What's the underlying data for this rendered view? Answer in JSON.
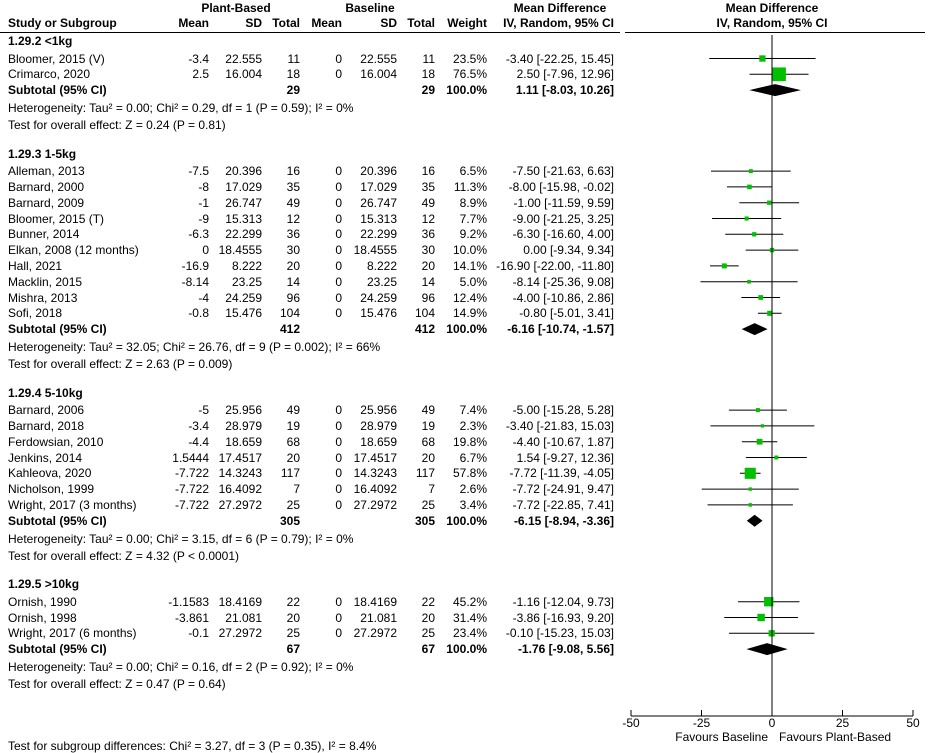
{
  "header": {
    "plant_group": "Plant-Based",
    "baseline_group": "Baseline",
    "md_group": "Mean Difference",
    "study_col": "Study or Subgroup",
    "mean": "Mean",
    "sd": "SD",
    "total": "Total",
    "weight": "Weight",
    "method": "IV, Random, 95% CI",
    "plot_title": "Mean Difference",
    "plot_method": "IV, Random, 95% CI"
  },
  "chart_data": {
    "type": "forest",
    "xlim": [
      -50,
      50
    ],
    "x_ticks": [
      "-50",
      "-25",
      "0",
      "25",
      "50"
    ],
    "x_tick_values": [
      -50,
      -25,
      0,
      25,
      50
    ],
    "favours_left": "Favours Baseline",
    "favours_right": "Favours Plant-Based",
    "marker_color": "#00c000",
    "groups": [
      {
        "title": "1.29.2 <1kg",
        "studies": [
          {
            "name": "Bloomer, 2015 (V)",
            "pb_mean": "-3.4",
            "pb_sd": "22.555",
            "pb_total": "11",
            "bl_mean": "0",
            "bl_sd": "22.555",
            "bl_total": "11",
            "weight": "23.5%",
            "ci": "-3.40 [-22.25, 15.45]",
            "md": -3.4,
            "lo": -22.25,
            "hi": 15.45
          },
          {
            "name": "Crimarco, 2020",
            "pb_mean": "2.5",
            "pb_sd": "16.004",
            "pb_total": "18",
            "bl_mean": "0",
            "bl_sd": "16.004",
            "bl_total": "18",
            "weight": "76.5%",
            "ci": "2.50 [-7.96, 12.96]",
            "md": 2.5,
            "lo": -7.96,
            "hi": 12.96
          }
        ],
        "subtotal": {
          "label": "Subtotal (95% CI)",
          "pb_total": "29",
          "bl_total": "29",
          "weight": "100.0%",
          "ci": "1.11 [-8.03, 10.26]",
          "md": 1.11,
          "lo": -8.03,
          "hi": 10.26
        },
        "heterogeneity": "Heterogeneity: Tau² = 0.00; Chi² = 0.29, df = 1 (P = 0.59); I² = 0%",
        "overall": "Test for overall effect: Z = 0.24 (P = 0.81)"
      },
      {
        "title": "1.29.3 1-5kg",
        "studies": [
          {
            "name": "Alleman, 2013",
            "pb_mean": "-7.5",
            "pb_sd": "20.396",
            "pb_total": "16",
            "bl_mean": "0",
            "bl_sd": "20.396",
            "bl_total": "16",
            "weight": "6.5%",
            "ci": "-7.50 [-21.63, 6.63]",
            "md": -7.5,
            "lo": -21.63,
            "hi": 6.63
          },
          {
            "name": "Barnard, 2000",
            "pb_mean": "-8",
            "pb_sd": "17.029",
            "pb_total": "35",
            "bl_mean": "0",
            "bl_sd": "17.029",
            "bl_total": "35",
            "weight": "11.3%",
            "ci": "-8.00 [-15.98, -0.02]",
            "md": -8.0,
            "lo": -15.98,
            "hi": -0.02
          },
          {
            "name": "Barnard, 2009",
            "pb_mean": "-1",
            "pb_sd": "26.747",
            "pb_total": "49",
            "bl_mean": "0",
            "bl_sd": "26.747",
            "bl_total": "49",
            "weight": "8.9%",
            "ci": "-1.00 [-11.59, 9.59]",
            "md": -1.0,
            "lo": -11.59,
            "hi": 9.59
          },
          {
            "name": "Bloomer, 2015 (T)",
            "pb_mean": "-9",
            "pb_sd": "15.313",
            "pb_total": "12",
            "bl_mean": "0",
            "bl_sd": "15.313",
            "bl_total": "12",
            "weight": "7.7%",
            "ci": "-9.00 [-21.25, 3.25]",
            "md": -9.0,
            "lo": -21.25,
            "hi": 3.25
          },
          {
            "name": "Bunner, 2014",
            "pb_mean": "-6.3",
            "pb_sd": "22.299",
            "pb_total": "36",
            "bl_mean": "0",
            "bl_sd": "22.299",
            "bl_total": "36",
            "weight": "9.2%",
            "ci": "-6.30 [-16.60, 4.00]",
            "md": -6.3,
            "lo": -16.6,
            "hi": 4.0
          },
          {
            "name": "Elkan, 2008 (12 months)",
            "pb_mean": "0",
            "pb_sd": "18.4555",
            "pb_total": "30",
            "bl_mean": "0",
            "bl_sd": "18.4555",
            "bl_total": "30",
            "weight": "10.0%",
            "ci": "0.00 [-9.34, 9.34]",
            "md": 0.0,
            "lo": -9.34,
            "hi": 9.34
          },
          {
            "name": "Hall, 2021",
            "pb_mean": "-16.9",
            "pb_sd": "8.222",
            "pb_total": "20",
            "bl_mean": "0",
            "bl_sd": "8.222",
            "bl_total": "20",
            "weight": "14.1%",
            "ci": "-16.90 [-22.00, -11.80]",
            "md": -16.9,
            "lo": -22.0,
            "hi": -11.8
          },
          {
            "name": "Macklin, 2015",
            "pb_mean": "-8.14",
            "pb_sd": "23.25",
            "pb_total": "14",
            "bl_mean": "0",
            "bl_sd": "23.25",
            "bl_total": "14",
            "weight": "5.0%",
            "ci": "-8.14 [-25.36, 9.08]",
            "md": -8.14,
            "lo": -25.36,
            "hi": 9.08
          },
          {
            "name": "Mishra, 2013",
            "pb_mean": "-4",
            "pb_sd": "24.259",
            "pb_total": "96",
            "bl_mean": "0",
            "bl_sd": "24.259",
            "bl_total": "96",
            "weight": "12.4%",
            "ci": "-4.00 [-10.86, 2.86]",
            "md": -4.0,
            "lo": -10.86,
            "hi": 2.86
          },
          {
            "name": "Sofi, 2018",
            "pb_mean": "-0.8",
            "pb_sd": "15.476",
            "pb_total": "104",
            "bl_mean": "0",
            "bl_sd": "15.476",
            "bl_total": "104",
            "weight": "14.9%",
            "ci": "-0.80 [-5.01, 3.41]",
            "md": -0.8,
            "lo": -5.01,
            "hi": 3.41
          }
        ],
        "subtotal": {
          "label": "Subtotal (95% CI)",
          "pb_total": "412",
          "bl_total": "412",
          "weight": "100.0%",
          "ci": "-6.16 [-10.74, -1.57]",
          "md": -6.16,
          "lo": -10.74,
          "hi": -1.57
        },
        "heterogeneity": "Heterogeneity: Tau² = 32.05; Chi² = 26.76, df = 9 (P = 0.002); I² = 66%",
        "overall": "Test for overall effect: Z = 2.63 (P = 0.009)"
      },
      {
        "title": "1.29.4 5-10kg",
        "studies": [
          {
            "name": "Barnard, 2006",
            "pb_mean": "-5",
            "pb_sd": "25.956",
            "pb_total": "49",
            "bl_mean": "0",
            "bl_sd": "25.956",
            "bl_total": "49",
            "weight": "7.4%",
            "ci": "-5.00 [-15.28, 5.28]",
            "md": -5.0,
            "lo": -15.28,
            "hi": 5.28
          },
          {
            "name": "Barnard, 2018",
            "pb_mean": "-3.4",
            "pb_sd": "28.979",
            "pb_total": "19",
            "bl_mean": "0",
            "bl_sd": "28.979",
            "bl_total": "19",
            "weight": "2.3%",
            "ci": "-3.40 [-21.83, 15.03]",
            "md": -3.4,
            "lo": -21.83,
            "hi": 15.03
          },
          {
            "name": "Ferdowsian, 2010",
            "pb_mean": "-4.4",
            "pb_sd": "18.659",
            "pb_total": "68",
            "bl_mean": "0",
            "bl_sd": "18.659",
            "bl_total": "68",
            "weight": "19.8%",
            "ci": "-4.40 [-10.67, 1.87]",
            "md": -4.4,
            "lo": -10.67,
            "hi": 1.87
          },
          {
            "name": "Jenkins, 2014",
            "pb_mean": "1.5444",
            "pb_sd": "17.4517",
            "pb_total": "20",
            "bl_mean": "0",
            "bl_sd": "17.4517",
            "bl_total": "20",
            "weight": "6.7%",
            "ci": "1.54 [-9.27, 12.36]",
            "md": 1.54,
            "lo": -9.27,
            "hi": 12.36
          },
          {
            "name": "Kahleova, 2020",
            "pb_mean": "-7.722",
            "pb_sd": "14.3243",
            "pb_total": "117",
            "bl_mean": "0",
            "bl_sd": "14.3243",
            "bl_total": "117",
            "weight": "57.8%",
            "ci": "-7.72 [-11.39, -4.05]",
            "md": -7.72,
            "lo": -11.39,
            "hi": -4.05
          },
          {
            "name": "Nicholson, 1999",
            "pb_mean": "-7.722",
            "pb_sd": "16.4092",
            "pb_total": "7",
            "bl_mean": "0",
            "bl_sd": "16.4092",
            "bl_total": "7",
            "weight": "2.6%",
            "ci": "-7.72 [-24.91, 9.47]",
            "md": -7.72,
            "lo": -24.91,
            "hi": 9.47
          },
          {
            "name": "Wright, 2017 (3 months)",
            "pb_mean": "-7.722",
            "pb_sd": "27.2972",
            "pb_total": "25",
            "bl_mean": "0",
            "bl_sd": "27.2972",
            "bl_total": "25",
            "weight": "3.4%",
            "ci": "-7.72 [-22.85, 7.41]",
            "md": -7.72,
            "lo": -22.85,
            "hi": 7.41
          }
        ],
        "subtotal": {
          "label": "Subtotal (95% CI)",
          "pb_total": "305",
          "bl_total": "305",
          "weight": "100.0%",
          "ci": "-6.15 [-8.94, -3.36]",
          "md": -6.15,
          "lo": -8.94,
          "hi": -3.36
        },
        "heterogeneity": "Heterogeneity: Tau² = 0.00; Chi² = 3.15, df = 6 (P = 0.79); I² = 0%",
        "overall": "Test for overall effect: Z = 4.32 (P < 0.0001)"
      },
      {
        "title": "1.29.5 >10kg",
        "studies": [
          {
            "name": "Ornish, 1990",
            "pb_mean": "-1.1583",
            "pb_sd": "18.4169",
            "pb_total": "22",
            "bl_mean": "0",
            "bl_sd": "18.4169",
            "bl_total": "22",
            "weight": "45.2%",
            "ci": "-1.16 [-12.04, 9.73]",
            "md": -1.16,
            "lo": -12.04,
            "hi": 9.73
          },
          {
            "name": "Ornish, 1998",
            "pb_mean": "-3.861",
            "pb_sd": "21.081",
            "pb_total": "20",
            "bl_mean": "0",
            "bl_sd": "21.081",
            "bl_total": "20",
            "weight": "31.4%",
            "ci": "-3.86 [-16.93, 9.20]",
            "md": -3.86,
            "lo": -16.93,
            "hi": 9.2
          },
          {
            "name": "Wright, 2017 (6 months)",
            "pb_mean": "-0.1",
            "pb_sd": "27.2972",
            "pb_total": "25",
            "bl_mean": "0",
            "bl_sd": "27.2972",
            "bl_total": "25",
            "weight": "23.4%",
            "ci": "-0.10 [-15.23, 15.03]",
            "md": -0.1,
            "lo": -15.23,
            "hi": 15.03
          }
        ],
        "subtotal": {
          "label": "Subtotal (95% CI)",
          "pb_total": "67",
          "bl_total": "67",
          "weight": "100.0%",
          "ci": "-1.76 [-9.08, 5.56]",
          "md": -1.76,
          "lo": -9.08,
          "hi": 5.56
        },
        "heterogeneity": "Heterogeneity: Tau² = 0.00; Chi² = 0.16, df = 2 (P = 0.92); I² = 0%",
        "overall": "Test for overall effect: Z = 0.47 (P = 0.64)"
      }
    ],
    "subgroup_test": "Test for subgroup differences: Chi² = 3.27, df = 3 (P = 0.35), I² = 8.4%"
  }
}
